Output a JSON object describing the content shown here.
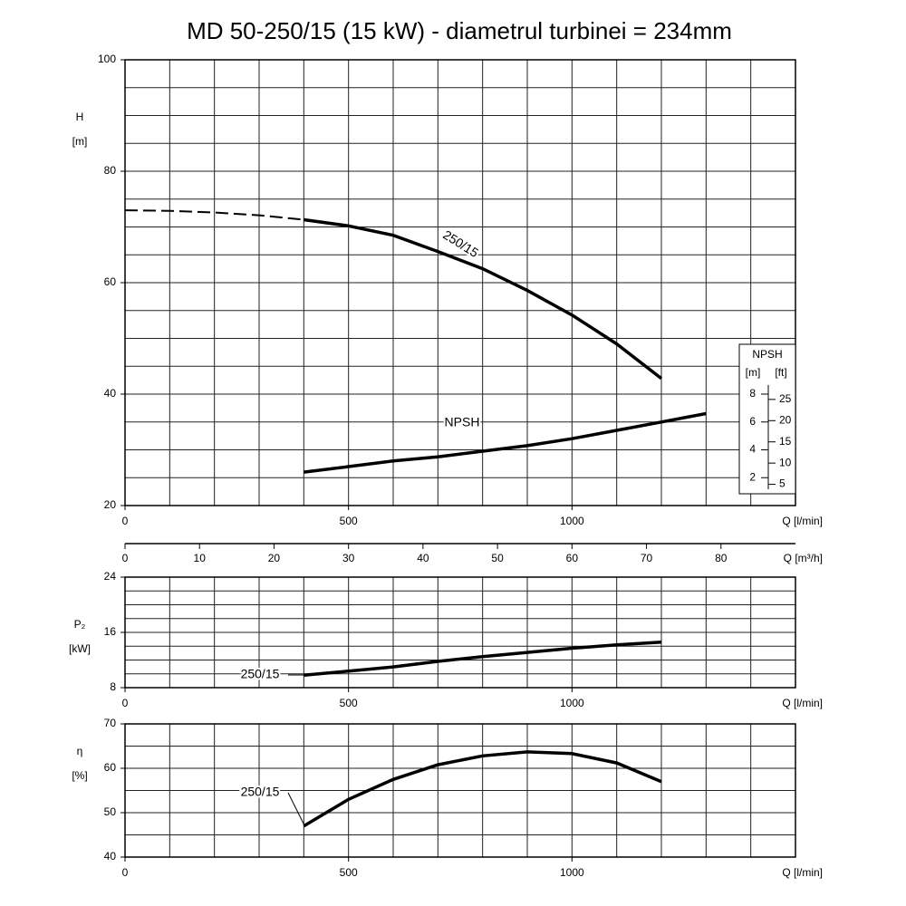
{
  "chart_data": [
    {
      "type": "line",
      "title": "MD 50-250/15 (15 kW) - diametrul turbinei = 234mm",
      "ylabel": "H",
      "yunit": "[m]",
      "xlabel": "Q [l/min]",
      "xlim": [
        0,
        1500
      ],
      "xticks": [
        0,
        500,
        1000
      ],
      "ylim": [
        20,
        100
      ],
      "yticks": [
        20,
        40,
        60,
        80,
        100
      ],
      "grid": {
        "x_step": 100,
        "y_step": 5
      },
      "x2label": "Q [m³/h]",
      "x2lim": [
        0,
        90
      ],
      "x2ticks": [
        0,
        10,
        20,
        30,
        40,
        50,
        60,
        70,
        80
      ],
      "y2label": "NPSH",
      "y2unit": "[m]",
      "y2lim": [
        0,
        32
      ],
      "y2ticks": [
        2,
        4,
        6,
        8
      ],
      "y3unit": "[ft]",
      "y3lim": [
        0,
        105
      ],
      "y3ticks": [
        5,
        10,
        15,
        20,
        25
      ],
      "series": [
        {
          "name": "250/15",
          "color": "#000000",
          "dashed_below": 400,
          "x": [
            0,
            100,
            200,
            300,
            400,
            500,
            600,
            700,
            800,
            900,
            1000,
            1100,
            1200
          ],
          "values": [
            73,
            72.9,
            72.6,
            72.1,
            71.3,
            70.2,
            68.5,
            65.6,
            62.5,
            58.6,
            54.2,
            49,
            42.8
          ]
        },
        {
          "name": "NPSH",
          "color": "#000000",
          "axis": "y2",
          "x": [
            400,
            500,
            600,
            700,
            800,
            900,
            1000,
            1100,
            1200,
            1300
          ],
          "values": [
            2.4,
            2.8,
            3.2,
            3.5,
            3.9,
            4.3,
            4.8,
            5.4,
            6.0,
            6.6
          ]
        }
      ]
    },
    {
      "type": "line",
      "ylabel": "P₂",
      "yunit": "[kW]",
      "xlabel": "Q [l/min]",
      "xlim": [
        0,
        1500
      ],
      "xticks": [
        0,
        500,
        1000
      ],
      "ylim": [
        8,
        24
      ],
      "yticks": [
        8,
        16,
        24
      ],
      "grid": {
        "x_step": 100,
        "y_step": 2
      },
      "series": [
        {
          "name": "250/15",
          "color": "#000000",
          "x": [
            400,
            500,
            600,
            700,
            800,
            900,
            1000,
            1100,
            1200
          ],
          "values": [
            9.8,
            10.4,
            11.0,
            11.8,
            12.5,
            13.1,
            13.7,
            14.2,
            14.6
          ]
        }
      ]
    },
    {
      "type": "line",
      "ylabel": "η",
      "yunit": "[%]",
      "xlabel": "Q [l/min]",
      "xlim": [
        0,
        1500
      ],
      "xticks": [
        0,
        500,
        1000
      ],
      "ylim": [
        40,
        70
      ],
      "yticks": [
        40,
        50,
        60,
        70
      ],
      "grid": {
        "x_step": 100,
        "y_step": 5
      },
      "series": [
        {
          "name": "250/15",
          "color": "#000000",
          "x": [
            400,
            500,
            600,
            700,
            800,
            900,
            1000,
            1100,
            1200
          ],
          "values": [
            47,
            53,
            57.5,
            60.8,
            62.8,
            63.7,
            63.3,
            61.2,
            57
          ]
        }
      ]
    }
  ]
}
